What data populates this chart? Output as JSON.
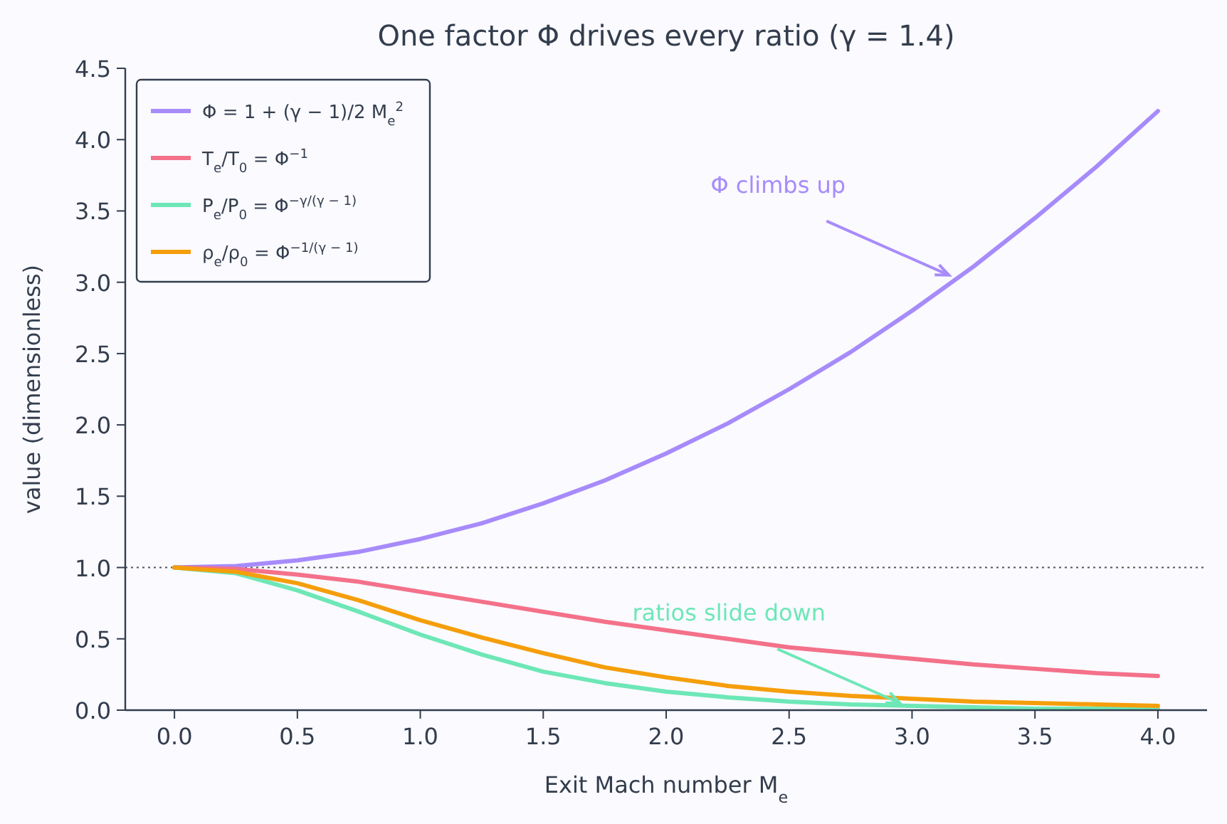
{
  "chart_data": {
    "type": "line",
    "title": "One factor Φ drives every ratio  (γ = 1.4)",
    "xlabel": "Exit Mach number  M$_{e}$",
    "ylabel": "value (dimensionless)",
    "x": [
      0,
      0.25,
      0.5,
      0.75,
      1,
      1.25,
      1.5,
      1.75,
      2,
      2.25,
      2.5,
      2.75,
      3,
      3.25,
      3.5,
      3.75,
      4
    ],
    "series": [
      {
        "name": "Φ = 1 + (γ − 1)/2 M$_{e}$$^{2}$",
        "color": "#a78bfa",
        "values": [
          1,
          1.01,
          1.05,
          1.11,
          1.2,
          1.31,
          1.45,
          1.61,
          1.8,
          2.01,
          2.25,
          2.51,
          2.8,
          3.11,
          3.45,
          3.81,
          4.2
        ]
      },
      {
        "name": "T$_{e}$/T$_{0}$ = Φ$^{−1}$",
        "color": "#f4718a",
        "values": [
          1,
          0.99,
          0.95,
          0.9,
          0.83,
          0.76,
          0.69,
          0.62,
          0.56,
          0.5,
          0.44,
          0.4,
          0.36,
          0.32,
          0.29,
          0.26,
          0.24
        ]
      },
      {
        "name": "P$_{e}$/P$_{0}$ = Φ$^{−γ/(γ − 1)}$",
        "color": "#6ee7b7",
        "values": [
          1,
          0.96,
          0.84,
          0.69,
          0.53,
          0.39,
          0.27,
          0.19,
          0.13,
          0.09,
          0.06,
          0.04,
          0.03,
          0.02,
          0.01,
          0.01,
          0.01
        ]
      },
      {
        "name": "ρ$_{e}$/ρ$_{0}$ = Φ$^{−1/(γ − 1)}$",
        "color": "#f59e0b",
        "values": [
          1,
          0.97,
          0.89,
          0.77,
          0.63,
          0.51,
          0.4,
          0.3,
          0.23,
          0.17,
          0.13,
          0.1,
          0.08,
          0.06,
          0.05,
          0.04,
          0.03
        ]
      }
    ],
    "xlim": [
      -0.2,
      4.2
    ],
    "xticks": [
      {
        "value": 0,
        "label": "0.0"
      },
      0.5,
      {
        "value": 1,
        "label": "1.0"
      },
      1.5,
      {
        "value": 2,
        "label": "2.0"
      },
      2.5,
      {
        "value": 3,
        "label": "3.0"
      },
      3.5,
      {
        "value": 4,
        "label": "4.0"
      }
    ],
    "ylim": [
      0,
      4.5
    ],
    "yticks": [
      {
        "value": 0,
        "label": "0.0"
      },
      0.5,
      {
        "value": 1,
        "label": "1.0"
      },
      1.5,
      {
        "value": 2,
        "label": "2.0"
      },
      2.5,
      {
        "value": 3,
        "label": "3.0"
      },
      3.5,
      {
        "value": 4,
        "label": "4.0"
      },
      4.5
    ],
    "ref_lines": [
      {
        "axis": "y",
        "value": 1,
        "color": "#555555",
        "line_style": "dotted"
      }
    ],
    "annotations": [
      {
        "text": "Φ climbs up",
        "x": 3.15,
        "y": 3.05
      },
      {
        "text": "ratios slide down",
        "x": 2.95,
        "y": 0.05
      }
    ],
    "legend": "top left",
    "grid": false,
    "marker": "none",
    "line_style": "solid"
  }
}
